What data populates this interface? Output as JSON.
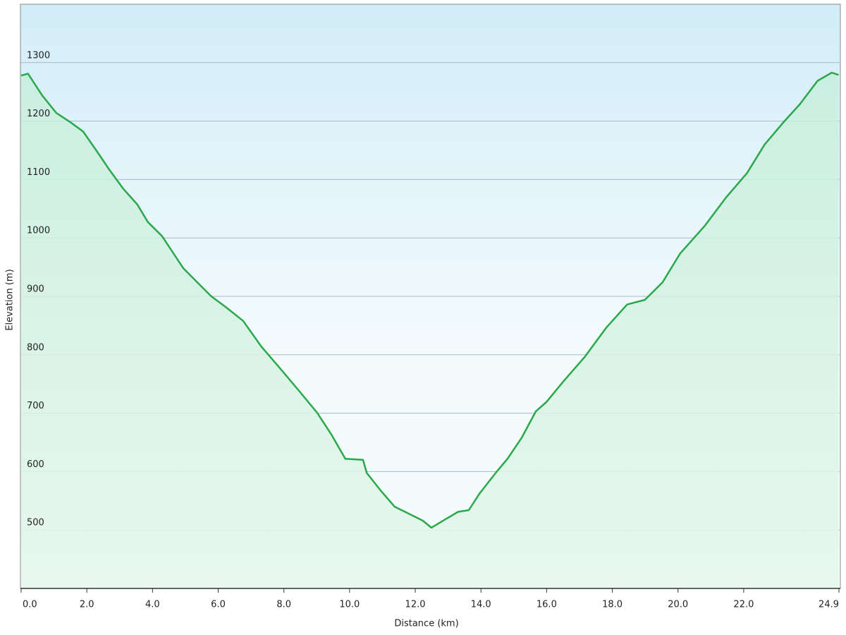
{
  "chart_data": {
    "type": "line",
    "x_label": "Distance  (km)",
    "y_label": "Elevation (m)",
    "x": [
      0,
      0.21,
      0.64,
      1.07,
      1.5,
      1.89,
      2.36,
      2.68,
      3.11,
      3.54,
      3.86,
      4.29,
      4.94,
      5.47,
      5.79,
      6.22,
      6.76,
      7.3,
      7.94,
      8.48,
      9.01,
      9.44,
      9.87,
      10.41,
      10.52,
      10.94,
      11.37,
      11.8,
      12.23,
      12.49,
      12.88,
      13.3,
      13.63,
      13.95,
      14.48,
      14.81,
      15.24,
      15.67,
      15.99,
      16.52,
      17.17,
      17.81,
      18.45,
      18.99,
      19.53,
      20.06,
      20.82,
      21.46,
      22.1,
      22.64,
      23.18,
      23.71,
      24.25,
      24.68,
      24.89
    ],
    "series": [
      {
        "color": "#2aa84a",
        "values": [
          1278,
          1281,
          1244,
          1214,
          1198,
          1182,
          1144,
          1117,
          1084,
          1057,
          1027,
          1003,
          948,
          918,
          900,
          882,
          858,
          815,
          773,
          737,
          701,
          664,
          622,
          620,
          598,
          568,
          540,
          528,
          516,
          504,
          517,
          531,
          534,
          562,
          600,
          622,
          658,
          703,
          719,
          755,
          797,
          846,
          886,
          894,
          924,
          973,
          1021,
          1069,
          1111,
          1160,
          1196,
          1229,
          1269,
          1283,
          1279
        ]
      }
    ],
    "xlim": [
      0,
      24.9
    ],
    "xticks": [
      {
        "value": 0,
        "label": "0.0"
      },
      {
        "value": 2,
        "label": "2.0"
      },
      {
        "value": 4,
        "label": "4.0"
      },
      {
        "value": 6,
        "label": "6.0"
      },
      {
        "value": 8,
        "label": "8.0"
      },
      {
        "value": 10,
        "label": "10.0"
      },
      {
        "value": 12,
        "label": "12.0"
      },
      {
        "value": 14,
        "label": "14.0"
      },
      {
        "value": 16,
        "label": "16.0"
      },
      {
        "value": 18,
        "label": "18.0"
      },
      {
        "value": 20,
        "label": "20.0"
      },
      {
        "value": 22,
        "label": "22.0"
      },
      {
        "value": 24.9,
        "label": "24.9"
      }
    ],
    "ylim": [
      400,
      1400
    ],
    "yticks": [
      500,
      600,
      700,
      800,
      900,
      1000,
      1100,
      1200,
      1300
    ],
    "grid": true
  }
}
